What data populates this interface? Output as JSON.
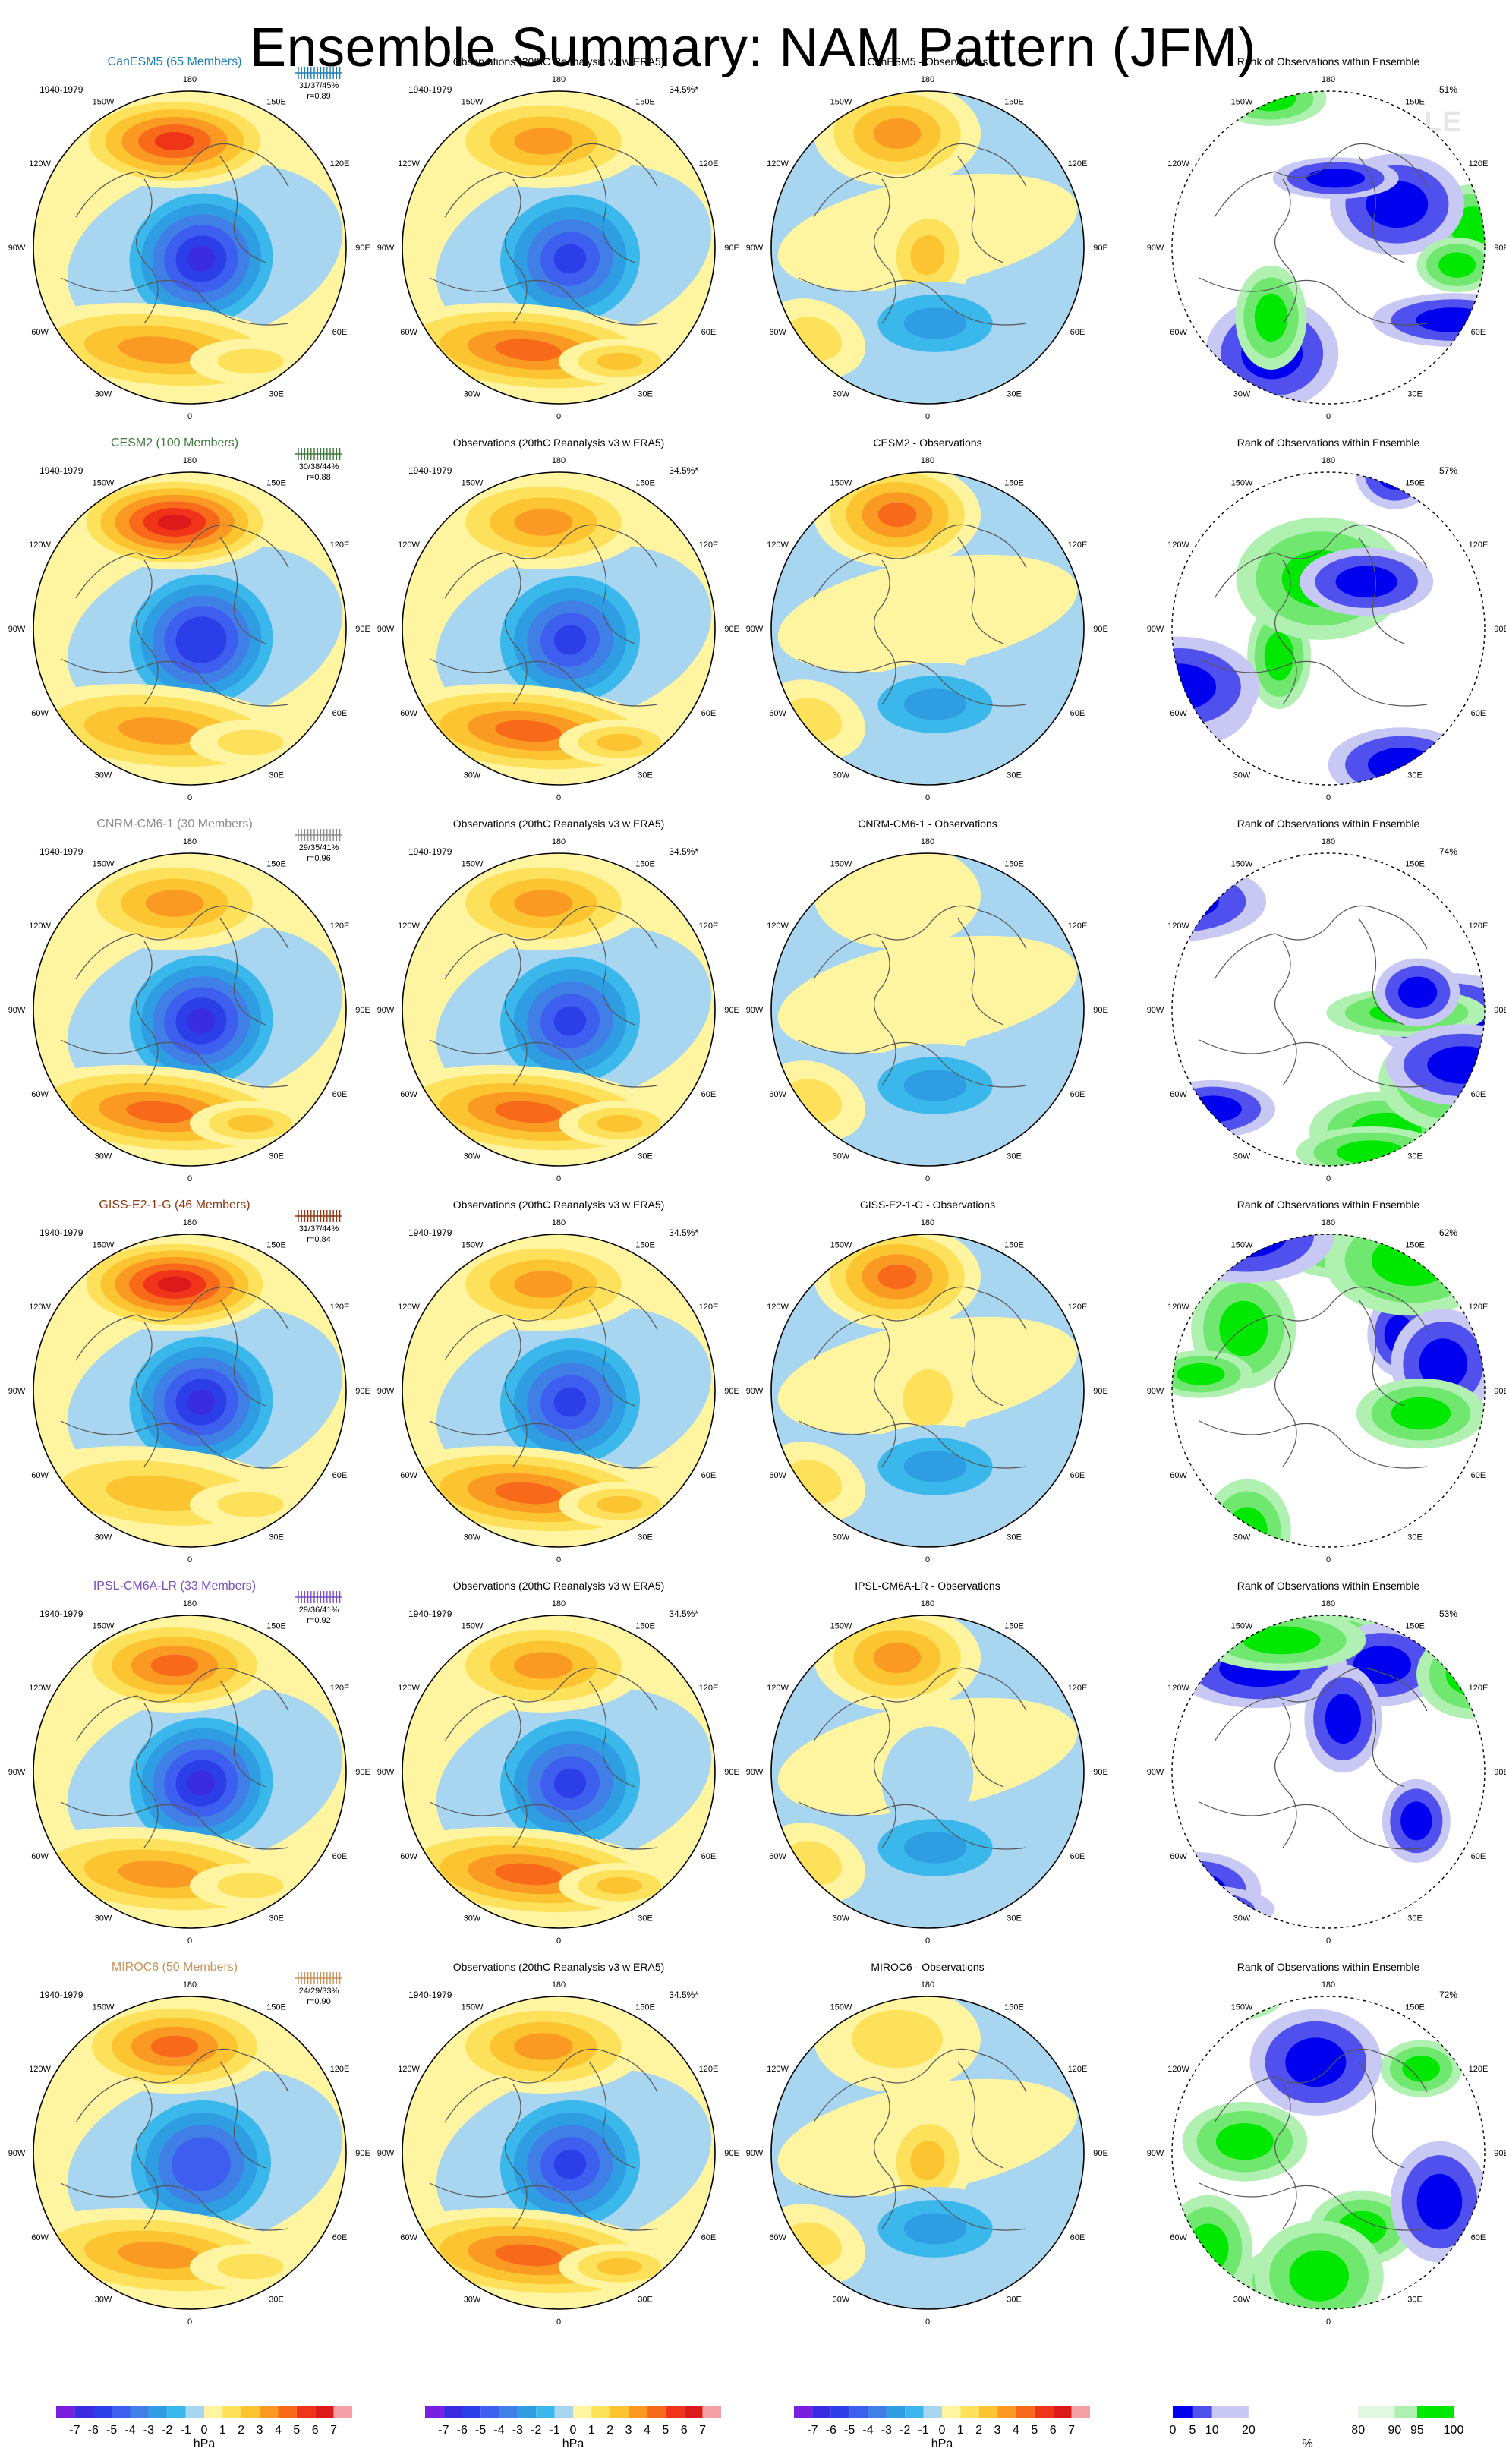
{
  "title": "Ensemble Summary: NAM Pattern (JFM)",
  "watermark": "© CVDP-LE",
  "longitude_labels": [
    "180",
    "150E",
    "120E",
    "90E",
    "60E",
    "30E",
    "0",
    "30W",
    "60W",
    "90W",
    "120W",
    "150W"
  ],
  "column_headers": {
    "observations": "Observations (20thC Reanalysis v3 w ERA5)",
    "rank": "Rank of Observations within Ensemble",
    "diff_suffix": " - Observations"
  },
  "period": "1940-1979",
  "obs_pct": "34.5%*",
  "models": [
    {
      "name": "CanESM5 (65 Members)",
      "short": "CanESM5",
      "color": "#1f7fb4",
      "stats": "31/37/45%",
      "r": "r=0.89",
      "rank_pct": "51%",
      "center_lo": -6.8,
      "pac_hi": 5.4,
      "atl_hi": 3.6,
      "diff_center": 2.5,
      "diff_pac": 3.0
    },
    {
      "name": "CESM2 (100 Members)",
      "short": "CESM2",
      "color": "#3d7a3d",
      "stats": "30/38/44%",
      "r": "r=0.88",
      "rank_pct": "57%",
      "center_lo": -6.0,
      "pac_hi": 6.5,
      "atl_hi": 3.8,
      "diff_center": 0.8,
      "diff_pac": 4.2
    },
    {
      "name": "CNRM-CM6-1 (30 Members)",
      "short": "CNRM-CM6-1",
      "color": "#8c8c8c",
      "stats": "29/35/41%",
      "r": "r=0.96",
      "rank_pct": "74%",
      "center_lo": -6.5,
      "pac_hi": 3.5,
      "atl_hi": 4.8,
      "diff_center": 0.4,
      "diff_pac": 0.6
    },
    {
      "name": "GISS-E2-1-G (46 Members)",
      "short": "GISS-E2-1-G",
      "color": "#8b3a0f",
      "stats": "31/37/44%",
      "r": "r=0.84",
      "rank_pct": "62%",
      "center_lo": -6.6,
      "pac_hi": 6.0,
      "atl_hi": 2.8,
      "diff_center": 1.8,
      "diff_pac": 4.5
    },
    {
      "name": "IPSL-CM6A-LR (33 Members)",
      "short": "IPSL-CM6A-LR",
      "color": "#7a4fc2",
      "stats": "29/36/41%",
      "r": "r=0.92",
      "rank_pct": "53%",
      "center_lo": -6.2,
      "pac_hi": 4.8,
      "atl_hi": 3.2,
      "diff_center": -0.8,
      "diff_pac": 3.0
    },
    {
      "name": "MIROC6 (50 Members)",
      "short": "MIROC6",
      "color": "#c8935a",
      "stats": "24/29/33%",
      "r": "r=0.90",
      "rank_pct": "72%",
      "center_lo": -5.0,
      "pac_hi": 4.2,
      "atl_hi": 3.2,
      "diff_center": 2.0,
      "diff_pac": 1.5
    }
  ],
  "chart_data": {
    "type": "heatmap",
    "title": "Ensemble Summary: NAM Pattern (JFM)",
    "layout": "6 rows (models) x 4 columns (ensemble pattern, observations, model minus observations, rank of observations)",
    "period": "1940-1979",
    "observations_pct_variance": "34.5%*",
    "models": [
      "CanESM5",
      "CESM2",
      "CNRM-CM6-1",
      "GISS-E2-1-G",
      "IPSL-CM6A-LR",
      "MIROC6"
    ],
    "members": [
      65,
      100,
      30,
      46,
      33,
      50
    ],
    "pct_variance_explained": [
      "31/37/45%",
      "30/38/44%",
      "29/35/41%",
      "31/37/44%",
      "29/36/41%",
      "24/29/33%"
    ],
    "pattern_correlation": [
      0.89,
      0.88,
      0.96,
      0.84,
      0.92,
      0.9
    ],
    "rank_of_observations_pct": [
      51,
      57,
      74,
      62,
      53,
      72
    ],
    "pressure_colorbar": {
      "units": "hPa",
      "levels": [
        -7,
        -6,
        -5,
        -4,
        -3,
        -2,
        -1,
        0,
        1,
        2,
        3,
        4,
        5,
        6,
        7
      ],
      "tick_labels": [
        "-7",
        "-6",
        "-5",
        "-4",
        "-3",
        "-2",
        "-1",
        "0",
        "1",
        "2",
        "3",
        "4",
        "5",
        "6",
        "7"
      ],
      "colors": [
        "#7a1fe0",
        "#3a2be0",
        "#2c3ee8",
        "#3e5ef0",
        "#3f7fe6",
        "#2f9de2",
        "#3ab8ec",
        "#a8d6f0",
        "#fff4a0",
        "#fde15a",
        "#fcc431",
        "#fb9a23",
        "#f86a1a",
        "#ef3419",
        "#dc1a1a",
        "#f4a0a6"
      ]
    },
    "rank_colorbar": {
      "units": "%",
      "tick_labels": [
        "0",
        "5",
        "10",
        "20",
        "80",
        "90",
        "95",
        "100"
      ],
      "colors": [
        "#0000ee",
        "#5050ee",
        "#9090ee",
        "#c8c8f4",
        "#e8e8fa",
        "#ffffff",
        "#e0f8e0",
        "#b0f0b0",
        "#70e870",
        "#00e800"
      ]
    }
  }
}
